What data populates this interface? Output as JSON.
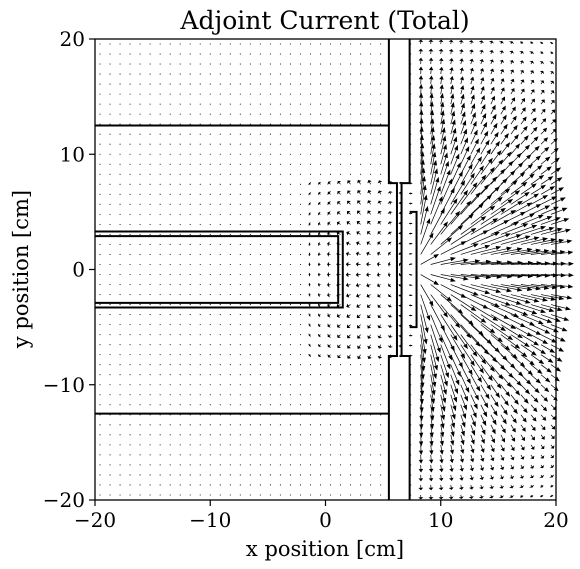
{
  "chart_data": {
    "type": "quiver",
    "title": "Adjoint Current (Total)",
    "xlabel": "x position [cm]",
    "ylabel": "y position [cm]",
    "xlim": [
      -20,
      20
    ],
    "ylim": [
      -20,
      20
    ],
    "xticks": [
      -20,
      -10,
      0,
      10,
      20
    ],
    "yticks": [
      -20,
      -10,
      0,
      10,
      20
    ],
    "xtick_labels": [
      "−20",
      "−10",
      "0",
      "10",
      "20"
    ],
    "ytick_labels": [
      "−20",
      "−10",
      "0",
      "10",
      "20"
    ],
    "grid": false,
    "field": {
      "description_source": "arrow field estimated from plot",
      "x_range": [
        -20,
        20
      ],
      "y_range": [
        -20,
        20
      ],
      "grid_count": [
        46,
        46
      ],
      "source_point": [
        7.5,
        0
      ],
      "arrows_point": "away from source region on right side"
    },
    "geometry_lines": [
      {
        "points": [
          [
            -20,
            12.5
          ],
          [
            5.5,
            12.5
          ]
        ]
      },
      {
        "points": [
          [
            -20,
            -12.5
          ],
          [
            5.5,
            -12.5
          ]
        ]
      },
      {
        "points": [
          [
            5.5,
            20
          ],
          [
            5.5,
            7.5
          ],
          [
            6.2,
            7.5
          ],
          [
            6.2,
            -7.5
          ],
          [
            5.5,
            -7.5
          ],
          [
            5.5,
            -20
          ]
        ]
      },
      {
        "points": [
          [
            7.3,
            20
          ],
          [
            7.3,
            7.5
          ],
          [
            6.6,
            7.5
          ],
          [
            6.6,
            -7.5
          ],
          [
            7.3,
            -7.5
          ],
          [
            7.3,
            -20
          ]
        ]
      },
      {
        "points": [
          [
            -20,
            3.3
          ],
          [
            1.5,
            3.3
          ],
          [
            1.5,
            -3.3
          ],
          [
            -20,
            -3.3
          ]
        ]
      },
      {
        "points": [
          [
            -20,
            2.9
          ],
          [
            1.1,
            2.9
          ],
          [
            1.1,
            -2.9
          ],
          [
            -20,
            -2.9
          ]
        ]
      },
      {
        "points": [
          [
            7.3,
            5
          ],
          [
            7.9,
            5
          ],
          [
            7.9,
            -5
          ],
          [
            7.3,
            -5
          ]
        ]
      }
    ]
  }
}
